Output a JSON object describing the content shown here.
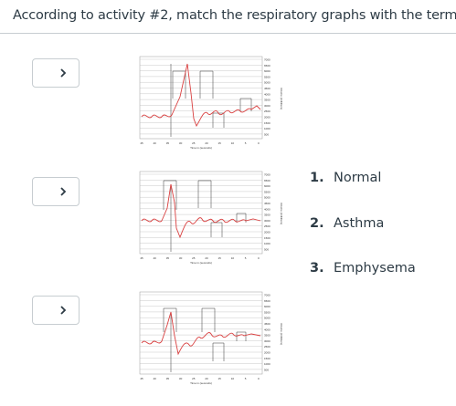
{
  "question": {
    "text": "According to activity #2, match the respiratory graphs with the terms."
  },
  "rows": [
    {
      "select_value": ""
    },
    {
      "select_value": ""
    },
    {
      "select_value": ""
    }
  ],
  "icons": {
    "chevron": "chevron-down-icon"
  },
  "graph_labels": {
    "x_ticks": [
      "45",
      "40",
      "35",
      "30",
      "25",
      "20",
      "15",
      "10",
      "5",
      "0"
    ],
    "y_ticks": [
      "7000",
      "6500",
      "6000",
      "5500",
      "5000",
      "4500",
      "4000",
      "3500",
      "3000",
      "2500",
      "2000",
      "1500",
      "1000",
      "500"
    ],
    "xlabel": "Time in (seconds)",
    "ylabel": "Volume (milliliters)"
  },
  "answers": [
    {
      "num": "1.",
      "label": "Normal"
    },
    {
      "num": "2.",
      "label": "Asthma"
    },
    {
      "num": "3.",
      "label": "Emphysema"
    }
  ],
  "colors": {
    "border": "#c7cdd1",
    "text": "#2d3b45",
    "curve": "#d94040"
  }
}
